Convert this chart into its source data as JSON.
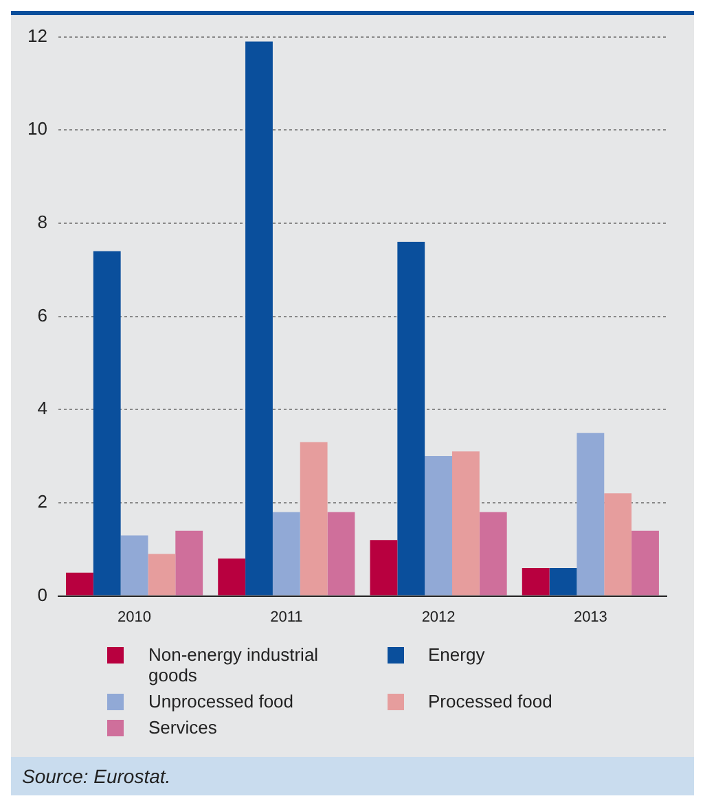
{
  "chart_data": {
    "type": "bar",
    "categories": [
      "2010",
      "2011",
      "2012",
      "2013"
    ],
    "series": [
      {
        "name": "Non-energy industrial goods",
        "color": "#b8003f",
        "values": [
          0.5,
          0.8,
          1.2,
          0.6
        ]
      },
      {
        "name": "Energy",
        "color": "#0a4f9c",
        "values": [
          7.4,
          11.9,
          7.6,
          0.6
        ]
      },
      {
        "name": "Unprocessed food",
        "color": "#91a9d6",
        "values": [
          1.3,
          1.8,
          3.0,
          3.5
        ]
      },
      {
        "name": "Processed food",
        "color": "#e69d9d",
        "values": [
          0.9,
          3.3,
          3.1,
          2.2
        ]
      },
      {
        "name": "Services",
        "color": "#cf6f9b",
        "values": [
          1.4,
          1.8,
          1.8,
          1.4
        ]
      }
    ],
    "ylim": [
      0,
      12
    ],
    "yticks": [
      0,
      2,
      4,
      6,
      8,
      10,
      12
    ],
    "grid": "y",
    "legend": "bottom",
    "annotations": [
      "Source: Eurostat."
    ]
  }
}
